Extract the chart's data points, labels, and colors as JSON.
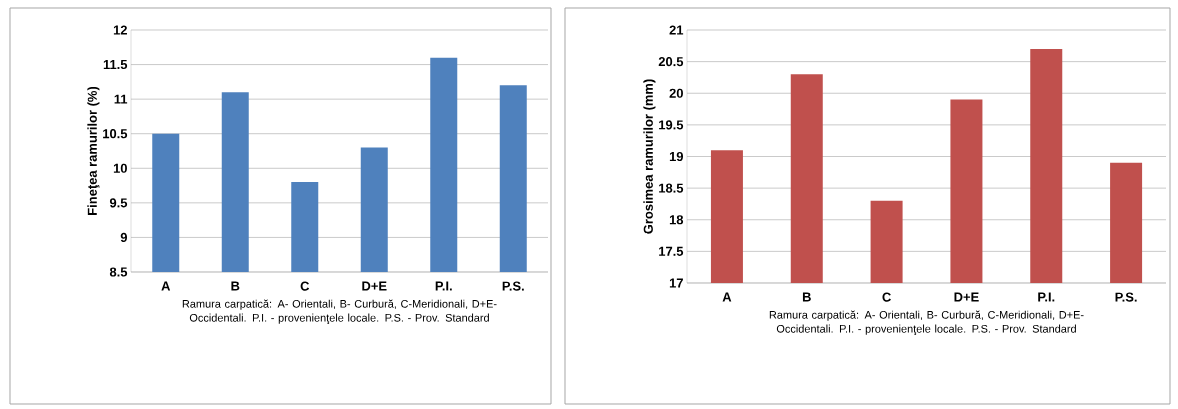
{
  "chart_data": [
    {
      "type": "bar",
      "categories": [
        "A",
        "B",
        "C",
        "D+E",
        "P.I.",
        "P.S."
      ],
      "values": [
        10.5,
        11.1,
        9.8,
        10.3,
        11.6,
        11.2
      ],
      "color": "#4f81bd",
      "ylabel": "Fineţea ramurilor (%)",
      "xlabel": "Ramura carpatică: A- Orientali, B- Curbură, C-Meridionali, D+E- Occidentali. P.I. - provenienţele locale. P.S. - Prov. Standard",
      "ylim": [
        8.5,
        12
      ],
      "yticks": [
        8.5,
        9,
        9.5,
        10,
        10.5,
        11,
        11.5,
        12
      ],
      "grid": "y"
    },
    {
      "type": "bar",
      "categories": [
        "A",
        "B",
        "C",
        "D+E",
        "P.I.",
        "P.S."
      ],
      "values": [
        19.1,
        20.3,
        18.3,
        19.9,
        20.7,
        18.9
      ],
      "color": "#c0504d",
      "ylabel": "Grosimea ramurilor (mm)",
      "xlabel": "Ramura carpatică: A- Orientali, B- Curbură, C-Meridionali, D+E- Occidentali. P.I. - provenienţele locale. P.S. - Prov. Standard",
      "ylim": [
        17,
        21
      ],
      "yticks": [
        17,
        17.5,
        18,
        18.5,
        19,
        19.5,
        20,
        20.5,
        21
      ],
      "grid": "y"
    }
  ]
}
